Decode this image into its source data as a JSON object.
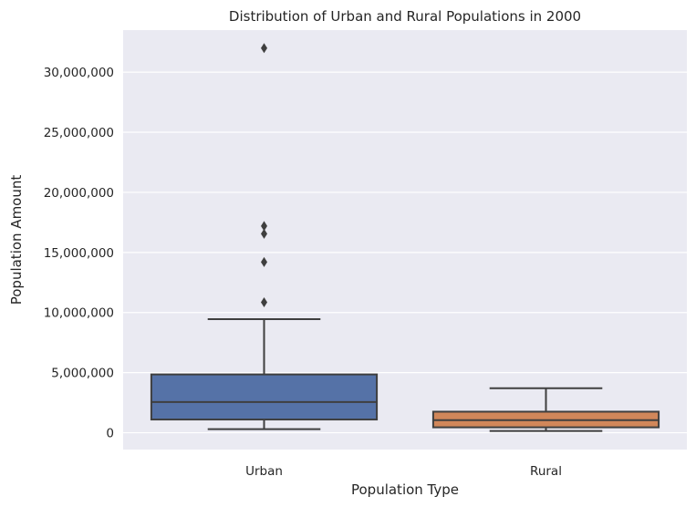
{
  "chart_data": {
    "type": "box",
    "title": "Distribution of Urban and Rural Populations in 2000",
    "xlabel": "Population Type",
    "ylabel": "Population Amount",
    "ylim": [
      -1400000,
      33500000
    ],
    "yticks": [
      {
        "value": 0,
        "label": "0"
      },
      {
        "value": 5000000,
        "label": "5,000,000"
      },
      {
        "value": 10000000,
        "label": "10,000,000"
      },
      {
        "value": 15000000,
        "label": "15,000,000"
      },
      {
        "value": 20000000,
        "label": "20,000,000"
      },
      {
        "value": 25000000,
        "label": "25,000,000"
      },
      {
        "value": 30000000,
        "label": "30,000,000"
      }
    ],
    "grid": true,
    "categories": [
      "Urban",
      "Rural"
    ],
    "series": [
      {
        "category": "Urban",
        "color": "#5572a7",
        "whisker_low": 300000,
        "q1": 1100000,
        "median": 2550000,
        "q3": 4850000,
        "whisker_high": 9450000,
        "outliers": [
          10850000,
          14200000,
          16550000,
          17200000,
          32000000
        ]
      },
      {
        "category": "Rural",
        "color": "#d1875a",
        "whisker_low": 150000,
        "q1": 450000,
        "median": 1050000,
        "q3": 1750000,
        "whisker_high": 3700000,
        "outliers": []
      }
    ]
  }
}
